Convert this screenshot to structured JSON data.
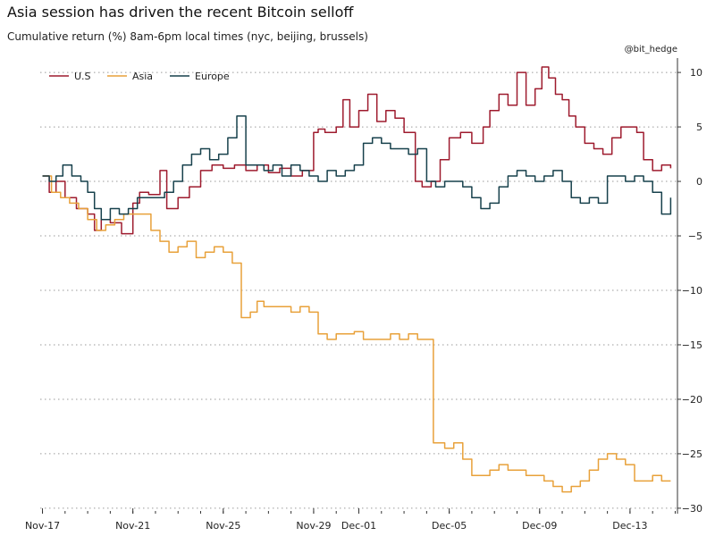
{
  "chart_data": {
    "type": "line",
    "title": "Asia session has driven the recent Bitcoin selloff",
    "subtitle": "Cumulative return (%) 8am-6pm local times (nyc, beijing, brussels)",
    "credit": "@bit_hedge",
    "xlabel": "",
    "ylabel": "",
    "x_ticks": [
      "Nov-17",
      "Nov-21",
      "Nov-25",
      "Nov-29",
      "Dec-01",
      "Dec-05",
      "Dec-09",
      "Dec-13"
    ],
    "x_tick_days": [
      0,
      4,
      8,
      12,
      14,
      18,
      22,
      26
    ],
    "xlim": [
      -0.1,
      28.1
    ],
    "y_ticks": [
      10,
      5,
      0,
      -5,
      -10,
      -15,
      -20,
      -25,
      -30
    ],
    "y_tick_labels": [
      "10",
      "5",
      "0",
      "−5",
      "−10",
      "−15",
      "−20",
      "−25",
      "−30"
    ],
    "ylim": [
      -30.5,
      10.5
    ],
    "grid": "horizontal-dotted",
    "axis_side": "right",
    "legend_position": "top-left",
    "series": [
      {
        "name": "U.S",
        "color": "#9e1b2e",
        "x": [
          0,
          0.3,
          0.6,
          1.0,
          1.5,
          2.0,
          2.3,
          2.6,
          3.0,
          3.5,
          4.0,
          4.3,
          4.7,
          5.2,
          5.5,
          6.0,
          6.5,
          7.0,
          7.5,
          8.0,
          8.5,
          9.0,
          9.5,
          10.0,
          10.5,
          11.0,
          11.5,
          12.0,
          12.2,
          12.5,
          13.0,
          13.3,
          13.6,
          14.0,
          14.4,
          14.8,
          15.2,
          15.6,
          16.0,
          16.5,
          16.8,
          17.2,
          17.6,
          18.0,
          18.5,
          19.0,
          19.5,
          19.8,
          20.2,
          20.6,
          21.0,
          21.4,
          21.8,
          22.1,
          22.4,
          22.7,
          23.0,
          23.3,
          23.6,
          24.0,
          24.4,
          24.8,
          25.2,
          25.6,
          26.0,
          26.3,
          26.6,
          27.0,
          27.4,
          27.8
        ],
        "values": [
          0.5,
          -1.0,
          0.0,
          -1.5,
          -2.5,
          -3.0,
          -4.5,
          -3.5,
          -3.8,
          -4.8,
          -2.0,
          -1.0,
          -1.2,
          1.0,
          -2.5,
          -1.5,
          -0.5,
          1.0,
          1.5,
          1.2,
          1.5,
          1.0,
          1.5,
          0.8,
          1.2,
          0.5,
          1.0,
          4.5,
          4.8,
          4.5,
          5.0,
          7.5,
          5.0,
          6.5,
          8.0,
          5.5,
          6.5,
          5.8,
          4.5,
          0.0,
          -0.5,
          0.0,
          2.0,
          4.0,
          4.5,
          3.5,
          5.0,
          6.5,
          8.0,
          7.0,
          10.0,
          7.0,
          8.5,
          10.5,
          9.5,
          8.0,
          7.5,
          6.0,
          5.0,
          3.5,
          3.0,
          2.5,
          4.0,
          5.0,
          5.0,
          4.5,
          2.0,
          1.0,
          1.5,
          1.2
        ]
      },
      {
        "name": "Asia",
        "color": "#e8a13a",
        "x": [
          0,
          0.4,
          0.8,
          1.2,
          1.6,
          2.0,
          2.4,
          2.8,
          3.2,
          3.6,
          4.0,
          4.4,
          4.8,
          5.2,
          5.6,
          6.0,
          6.4,
          6.8,
          7.2,
          7.6,
          8.0,
          8.4,
          8.8,
          9.2,
          9.5,
          9.8,
          10.2,
          10.6,
          11.0,
          11.4,
          11.8,
          12.2,
          12.6,
          13.0,
          13.4,
          13.8,
          14.2,
          14.6,
          15.0,
          15.4,
          15.8,
          16.2,
          16.6,
          17.0,
          17.3,
          17.5,
          17.8,
          18.2,
          18.6,
          19.0,
          19.4,
          19.8,
          20.2,
          20.6,
          21.0,
          21.4,
          21.8,
          22.2,
          22.6,
          23.0,
          23.4,
          23.8,
          24.2,
          24.6,
          25.0,
          25.4,
          25.8,
          26.2,
          26.6,
          27.0,
          27.4,
          27.8
        ],
        "values": [
          0.5,
          -1.0,
          -1.5,
          -2.0,
          -2.5,
          -3.5,
          -4.5,
          -4.0,
          -3.5,
          -3.0,
          -3.0,
          -3.0,
          -4.5,
          -5.5,
          -6.5,
          -6.0,
          -5.5,
          -7.0,
          -6.5,
          -6.0,
          -6.5,
          -7.5,
          -12.5,
          -12.0,
          -11.0,
          -11.5,
          -11.5,
          -11.5,
          -12.0,
          -11.5,
          -12.0,
          -14.0,
          -14.5,
          -14.0,
          -14.0,
          -13.8,
          -14.5,
          -14.5,
          -14.5,
          -14.0,
          -14.5,
          -14.0,
          -14.5,
          -14.5,
          -24.0,
          -24.0,
          -24.5,
          -24.0,
          -25.5,
          -27.0,
          -27.0,
          -26.5,
          -26.0,
          -26.5,
          -26.5,
          -27.0,
          -27.0,
          -27.5,
          -28.0,
          -28.5,
          -28.0,
          -27.5,
          -26.5,
          -25.5,
          -25.0,
          -25.5,
          -26.0,
          -27.5,
          -27.5,
          -27.0,
          -27.5,
          -27.5
        ]
      },
      {
        "name": "Europe",
        "color": "#17414c",
        "x": [
          0,
          0.3,
          0.6,
          0.9,
          1.3,
          1.7,
          2.0,
          2.3,
          2.6,
          3.0,
          3.4,
          3.8,
          4.2,
          4.6,
          5.0,
          5.4,
          5.8,
          6.2,
          6.6,
          7.0,
          7.4,
          7.8,
          8.2,
          8.6,
          9.0,
          9.4,
          9.8,
          10.2,
          10.6,
          11.0,
          11.4,
          11.8,
          12.2,
          12.6,
          13.0,
          13.4,
          13.8,
          14.2,
          14.6,
          15.0,
          15.4,
          15.8,
          16.2,
          16.6,
          17.0,
          17.4,
          17.8,
          18.2,
          18.6,
          19.0,
          19.4,
          19.8,
          20.2,
          20.6,
          21.0,
          21.4,
          21.8,
          22.2,
          22.6,
          23.0,
          23.4,
          23.8,
          24.2,
          24.6,
          25.0,
          25.4,
          25.8,
          26.2,
          26.6,
          27.0,
          27.4,
          27.8
        ],
        "values": [
          0.5,
          0.0,
          0.5,
          1.5,
          0.5,
          0.0,
          -1.0,
          -2.5,
          -3.5,
          -2.5,
          -3.0,
          -2.5,
          -1.5,
          -1.5,
          -1.5,
          -1.0,
          0.0,
          1.5,
          2.5,
          3.0,
          2.0,
          2.5,
          4.0,
          6.0,
          1.5,
          1.5,
          1.0,
          1.5,
          0.5,
          1.5,
          1.0,
          0.5,
          0.0,
          1.0,
          0.5,
          1.0,
          1.5,
          3.5,
          4.0,
          3.5,
          3.0,
          3.0,
          2.5,
          3.0,
          0.0,
          -0.5,
          0.0,
          0.0,
          -0.5,
          -1.5,
          -2.5,
          -2.0,
          -0.5,
          0.5,
          1.0,
          0.5,
          0.0,
          0.5,
          1.0,
          0.0,
          -1.5,
          -2.0,
          -1.5,
          -2.0,
          0.5,
          0.5,
          0.0,
          0.5,
          0.0,
          -1.0,
          -3.0,
          -1.5
        ]
      }
    ]
  }
}
